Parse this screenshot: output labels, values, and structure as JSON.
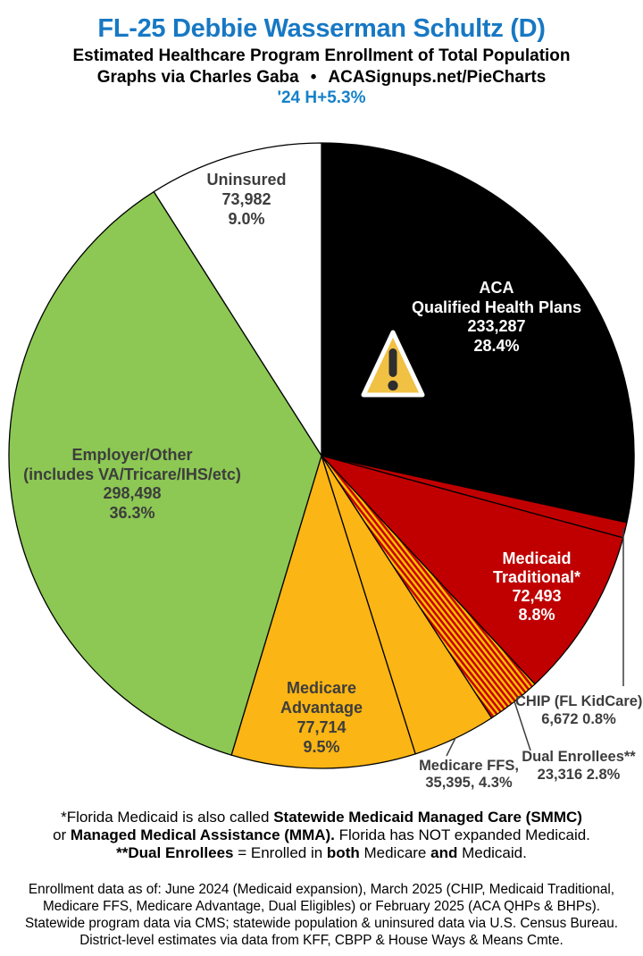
{
  "header": {
    "title": "FL-25 Debbie Wasserman Schultz (D)",
    "subtitle": "Estimated Healthcare Program Enrollment of Total Population",
    "credit_left": "Graphs via Charles Gaba",
    "credit_separator": "•",
    "credit_right": "ACASignups.net/PieCharts",
    "year_note": "'24 H+5.3%",
    "title_color": "#1778c4",
    "year_note_color": "#1582c8"
  },
  "chart_data": {
    "type": "pie",
    "title": "Estimated Healthcare Program Enrollment of Total Population",
    "direction": "clockwise",
    "start_angle_deg": 0,
    "icons": {
      "warning": "⚠"
    },
    "hatch_colors": {
      "red": "#c80000",
      "yellow": "#ffc400"
    },
    "slices": [
      {
        "id": "aca-qhp",
        "label_lines": [
          "ACA",
          "Qualified Health Plans"
        ],
        "value": 233287,
        "value_text": "233,287",
        "pct_text": "28.4%",
        "percent": 28.4,
        "fill": "#000000",
        "text_color": "#ffffff"
      },
      {
        "id": "chip",
        "label_lines": [
          "CHIP (FL KidCare)"
        ],
        "value": 6672,
        "value_text": "6,672",
        "pct_text": "0.8%",
        "percent": 0.8,
        "fill": "#c00000",
        "callout": true
      },
      {
        "id": "medicaid-traditional",
        "label_lines": [
          "Medicaid",
          "Traditional*"
        ],
        "value": 72493,
        "value_text": "72,493",
        "pct_text": "8.8%",
        "percent": 8.8,
        "fill": "#c00000",
        "text_color": "#ffffff"
      },
      {
        "id": "dual-enrollees",
        "label_lines": [
          "Dual Enrollees**"
        ],
        "value": 23316,
        "value_text": "23,316",
        "pct_text": "2.8%",
        "percent": 2.8,
        "fill": "hatch",
        "callout": true
      },
      {
        "id": "medicare-ffs",
        "label_lines": [
          "Medicare FFS,"
        ],
        "value": 35395,
        "value_text": "35,395,",
        "pct_text": "4.3%",
        "percent": 4.3,
        "fill": "#fbb514",
        "callout": true
      },
      {
        "id": "medicare-advantage",
        "label_lines": [
          "Medicare",
          "Advantage"
        ],
        "value": 77714,
        "value_text": "77,714",
        "pct_text": "9.5%",
        "percent": 9.5,
        "fill": "#fbb514",
        "text_color": "#3d3d3d"
      },
      {
        "id": "employer-other",
        "label_lines": [
          "Employer/Other",
          "(includes VA/Tricare/IHS/etc)"
        ],
        "value": 298498,
        "value_text": "298,498",
        "pct_text": "36.3%",
        "percent": 36.3,
        "fill": "#8cc853",
        "text_color": "#3d3d3d"
      },
      {
        "id": "uninsured",
        "label_lines": [
          "Uninsured"
        ],
        "value": 73982,
        "value_text": "73,982",
        "pct_text": "9.0%",
        "percent": 9.0,
        "fill": "#ffffff",
        "text_color": "#3d3d3d"
      }
    ]
  },
  "footnotes": {
    "lines": [
      [
        {
          "t": "*Florida Medicaid is also called ",
          "b": false
        },
        {
          "t": "Statewide Medicaid Managed Care (SMMC)",
          "b": true
        }
      ],
      [
        {
          "t": "or ",
          "b": false
        },
        {
          "t": "Managed Medical Assistance (MMA).",
          "b": true
        },
        {
          "t": " Florida has NOT expanded Medicaid.",
          "b": false
        }
      ],
      [
        {
          "t": "**Dual Enrollees",
          "b": true
        },
        {
          "t": " = Enrolled in ",
          "b": false
        },
        {
          "t": "both",
          "b": true
        },
        {
          "t": " Medicare ",
          "b": false
        },
        {
          "t": "and",
          "b": true
        },
        {
          "t": " Medicaid.",
          "b": false
        }
      ]
    ]
  },
  "footer": {
    "lines": [
      "Enrollment data as of: June 2024 (Medicaid expansion), March 2025 (CHIP, Medicaid Traditional,",
      "Medicare FFS, Medicare Advantage, Dual Eligibles) or February 2025 (ACA QHPs & BHPs).",
      "Statewide program data via CMS; statewide population & uninsured data via U.S. Census Bureau.",
      "District-level estimates via data from KFF, CBPP & House Ways & Means Cmte."
    ]
  }
}
